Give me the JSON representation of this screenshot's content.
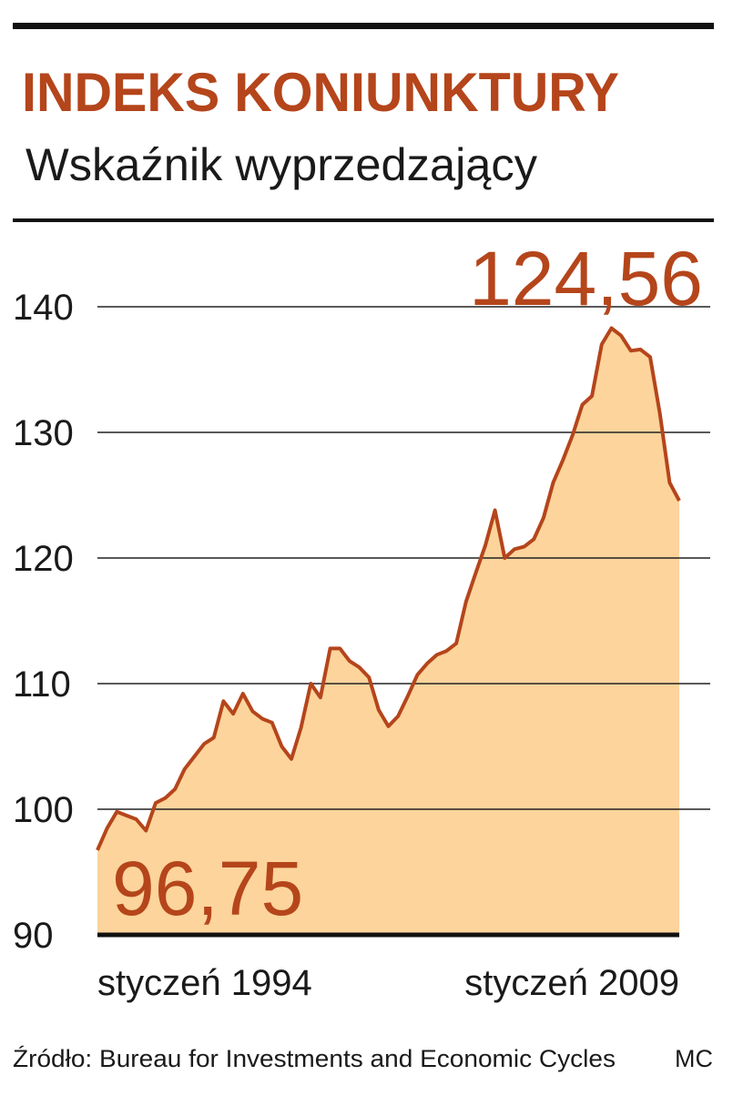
{
  "chart_data": {
    "type": "area",
    "title": "INDEKS KONIUNKTURY",
    "subtitle": "Wskaźnik wyprzedzający",
    "source": "Źródło: Bureau for Investments and Economic Cycles",
    "credit": "MC",
    "categories": [
      "styczeń 1994",
      null,
      null,
      null,
      null,
      null,
      null,
      null,
      null,
      null,
      null,
      null,
      null,
      null,
      null,
      null,
      null,
      null,
      null,
      null,
      null,
      null,
      null,
      null,
      null,
      null,
      null,
      null,
      null,
      null,
      null,
      null,
      null,
      null,
      null,
      null,
      null,
      null,
      null,
      null,
      null,
      null,
      null,
      null,
      null,
      null,
      null,
      null,
      null,
      null,
      null,
      null,
      null,
      null,
      null,
      null,
      null,
      null,
      null,
      null,
      "styczeń 2009"
    ],
    "values": [
      96.75,
      98.5,
      99.8,
      99.5,
      99.2,
      98.3,
      100.5,
      100.9,
      101.6,
      103.2,
      104.2,
      105.2,
      105.7,
      108.6,
      107.6,
      109.2,
      107.8,
      107.2,
      106.9,
      105.0,
      104.0,
      106.5,
      110.0,
      108.9,
      112.8,
      112.8,
      111.8,
      111.3,
      110.5,
      107.9,
      106.6,
      107.4,
      109.0,
      110.7,
      111.6,
      112.3,
      112.6,
      113.2,
      116.5,
      118.8,
      121.0,
      123.8,
      120.0,
      120.7,
      120.9,
      121.5,
      123.2,
      126.0,
      127.8,
      129.8,
      132.2,
      132.9,
      137.0,
      138.3,
      137.7,
      136.5,
      136.6,
      136.0,
      131.5,
      126.0,
      124.56
    ],
    "value_labels": [
      "96,75",
      null,
      null,
      null,
      null,
      null,
      null,
      null,
      null,
      null,
      null,
      null,
      null,
      null,
      null,
      null,
      null,
      null,
      null,
      null,
      null,
      null,
      null,
      null,
      null,
      null,
      null,
      null,
      null,
      null,
      null,
      null,
      null,
      null,
      null,
      null,
      null,
      null,
      null,
      null,
      null,
      null,
      null,
      null,
      null,
      null,
      null,
      null,
      null,
      null,
      null,
      null,
      null,
      null,
      null,
      null,
      null,
      null,
      null,
      null,
      "124,56"
    ],
    "color": "#b5451b",
    "fill": "#fcd49c",
    "ylim": [
      90,
      140
    ],
    "yticks": [
      90,
      100,
      110,
      120,
      130,
      140
    ],
    "grid": true
  }
}
